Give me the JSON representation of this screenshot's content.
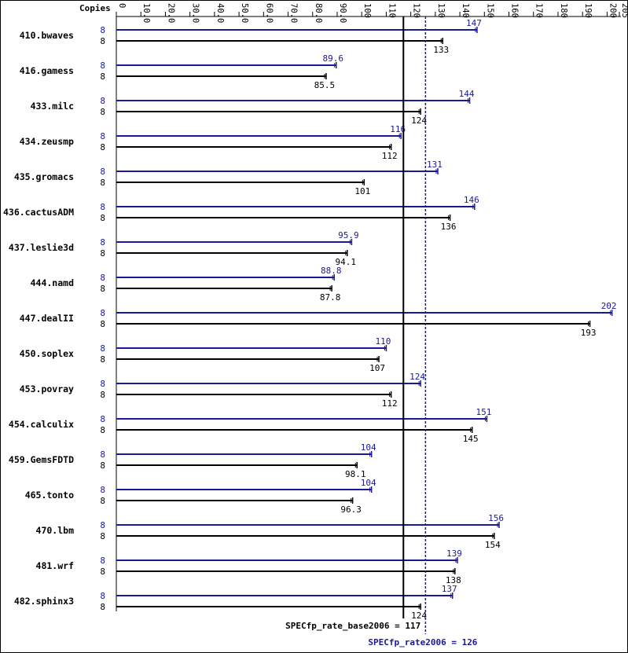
{
  "chart_data": {
    "type": "bar",
    "orientation": "horizontal",
    "header_label": "Copies",
    "axis_ticks": [
      "0",
      "10.0",
      "20.0",
      "30.0",
      "40.0",
      "50.0",
      "60.0",
      "70.0",
      "80.0",
      "90.0",
      "100",
      "110",
      "120",
      "130",
      "140",
      "150",
      "160",
      "170",
      "180",
      "190",
      "200",
      "205"
    ],
    "xlim": [
      0,
      205
    ],
    "colors": {
      "peak": "#191996",
      "base": "#000000"
    },
    "benchmarks": [
      {
        "name": "410.bwaves",
        "peak": 147,
        "base": 133,
        "peak_label": "147",
        "base_label": "133",
        "peak_copies": "8",
        "base_copies": "8"
      },
      {
        "name": "416.gamess",
        "peak": 89.6,
        "base": 85.5,
        "peak_label": "89.6",
        "base_label": "85.5",
        "peak_copies": "8",
        "base_copies": "8"
      },
      {
        "name": "433.milc",
        "peak": 144,
        "base": 124,
        "peak_label": "144",
        "base_label": "124",
        "peak_copies": "8",
        "base_copies": "8"
      },
      {
        "name": "434.zeusmp",
        "peak": 116,
        "base": 112,
        "peak_label": "116",
        "base_label": "112",
        "peak_copies": "8",
        "base_copies": "8"
      },
      {
        "name": "435.gromacs",
        "peak": 131,
        "base": 101,
        "peak_label": "131",
        "base_label": "101",
        "peak_copies": "8",
        "base_copies": "8"
      },
      {
        "name": "436.cactusADM",
        "peak": 146,
        "base": 136,
        "peak_label": "146",
        "base_label": "136",
        "peak_copies": "8",
        "base_copies": "8"
      },
      {
        "name": "437.leslie3d",
        "peak": 95.9,
        "base": 94.1,
        "peak_label": "95.9",
        "base_label": "94.1",
        "peak_copies": "8",
        "base_copies": "8"
      },
      {
        "name": "444.namd",
        "peak": 88.8,
        "base": 87.8,
        "peak_label": "88.8",
        "base_label": "87.8",
        "peak_copies": "8",
        "base_copies": "8"
      },
      {
        "name": "447.dealII",
        "peak": 202,
        "base": 193,
        "peak_label": "202",
        "base_label": "193",
        "peak_copies": "8",
        "base_copies": "8"
      },
      {
        "name": "450.soplex",
        "peak": 110,
        "base": 107,
        "peak_label": "110",
        "base_label": "107",
        "peak_copies": "8",
        "base_copies": "8"
      },
      {
        "name": "453.povray",
        "peak": 124,
        "base": 112,
        "peak_label": "124",
        "base_label": "112",
        "peak_copies": "8",
        "base_copies": "8"
      },
      {
        "name": "454.calculix",
        "peak": 151,
        "base": 145,
        "peak_label": "151",
        "base_label": "145",
        "peak_copies": "8",
        "base_copies": "8"
      },
      {
        "name": "459.GemsFDTD",
        "peak": 104,
        "base": 98.1,
        "peak_label": "104",
        "base_label": "98.1",
        "peak_copies": "8",
        "base_copies": "8"
      },
      {
        "name": "465.tonto",
        "peak": 104,
        "base": 96.3,
        "peak_label": "104",
        "base_label": "96.3",
        "peak_copies": "8",
        "base_copies": "8"
      },
      {
        "name": "470.lbm",
        "peak": 156,
        "base": 154,
        "peak_label": "156",
        "base_label": "154",
        "peak_copies": "8",
        "base_copies": "8"
      },
      {
        "name": "481.wrf",
        "peak": 139,
        "base": 138,
        "peak_label": "139",
        "base_label": "138",
        "peak_copies": "8",
        "base_copies": "8"
      },
      {
        "name": "482.sphinx3",
        "peak": 137,
        "base": 124,
        "peak_label": "137",
        "base_label": "124",
        "peak_copies": "8",
        "base_copies": "8"
      }
    ],
    "summary": {
      "base_value": 117,
      "base_label": "SPECfp_rate_base2006 = 117",
      "peak_value": 126,
      "peak_label": "SPECfp_rate2006 = 126"
    }
  }
}
